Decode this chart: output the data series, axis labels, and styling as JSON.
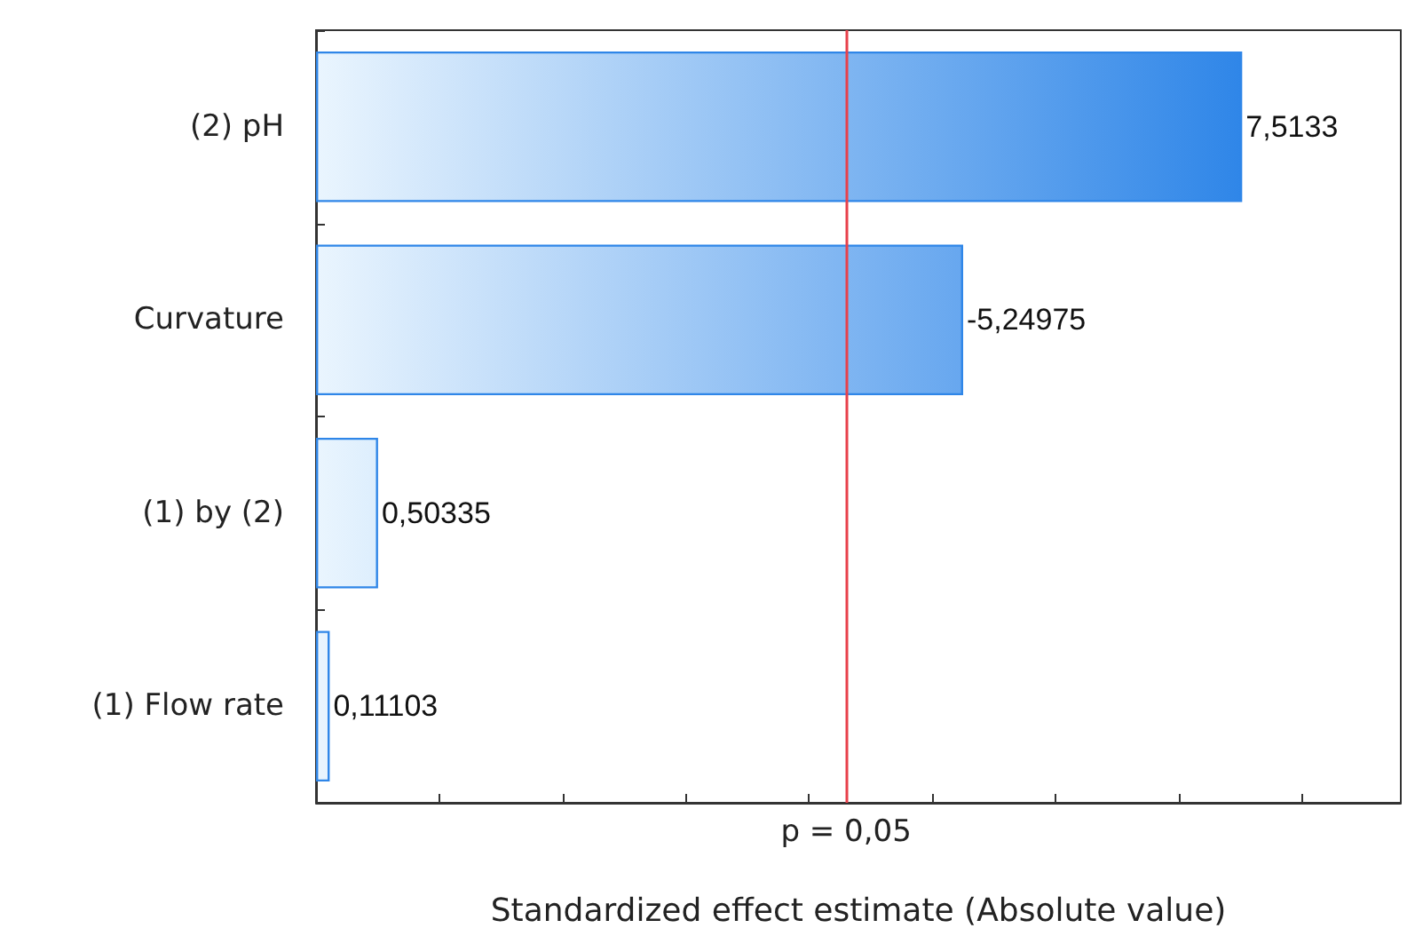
{
  "chart_data": {
    "type": "bar",
    "orientation": "horizontal",
    "xlabel": "Standardized effect estimate (Absolute value)",
    "categories": [
      "(2) pH",
      "Curvature",
      "(1) by (2)",
      "(1) Flow rate"
    ],
    "values": [
      7.5133,
      5.24975,
      0.50335,
      0.11103
    ],
    "value_labels": [
      "7,5133",
      "-5,24975",
      "0,50335",
      "0,11103"
    ],
    "color": "#2f86e8",
    "xlim": [
      0,
      8.8
    ],
    "xticks": [
      {
        "value": 0,
        "label": null
      },
      {
        "value": 1,
        "label": null
      },
      {
        "value": 2,
        "label": null
      },
      {
        "value": 3,
        "label": null
      },
      {
        "value": 4,
        "label": null
      },
      {
        "value": 5,
        "label": null
      },
      {
        "value": 6,
        "label": null
      },
      {
        "value": 7,
        "label": null
      },
      {
        "value": 8,
        "label": null
      }
    ],
    "ref_lines": [
      {
        "axis": "x",
        "value": 4.3,
        "color": "#e8404a"
      }
    ],
    "annotations": [
      "p = 0,05"
    ],
    "grid": false
  }
}
